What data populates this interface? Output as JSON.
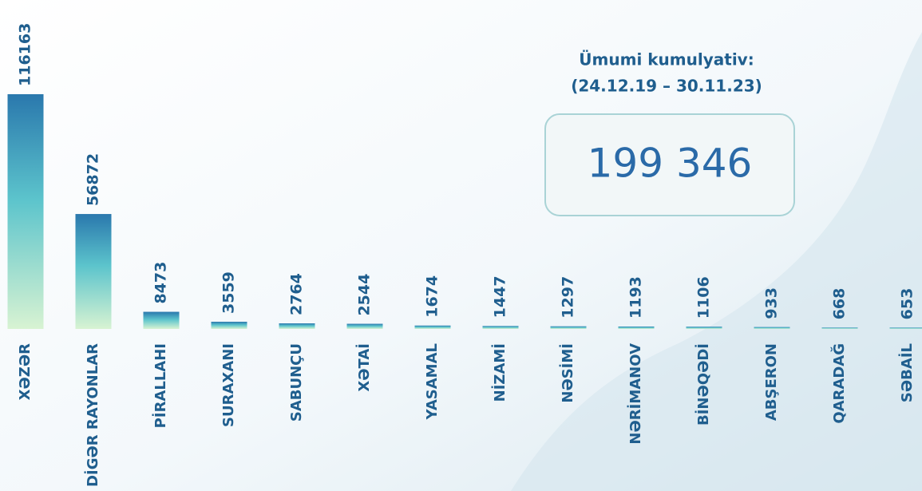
{
  "chart_data": {
    "type": "bar",
    "categories": [
      "XƏZƏR",
      "DİGƏR RAYONLAR",
      "PİRALLAHI",
      "SURAXANI",
      "SABUNÇU",
      "XƏTAİ",
      "YASAMAL",
      "NİZAMİ",
      "NƏSİMİ",
      "NƏRİMANOV",
      "BİNƏQƏDİ",
      "ABŞERON",
      "QARADAĞ",
      "SƏBAİL"
    ],
    "values": [
      116163,
      56872,
      8473,
      3559,
      2764,
      2544,
      1674,
      1447,
      1297,
      1193,
      1106,
      933,
      668,
      653
    ],
    "color": "#2b7bb0",
    "annotation": {
      "title": "Ümumi kumulyativ:",
      "period": "(24.12.19 – 30.11.23)",
      "value": 199346,
      "value_label": "199 346"
    }
  }
}
